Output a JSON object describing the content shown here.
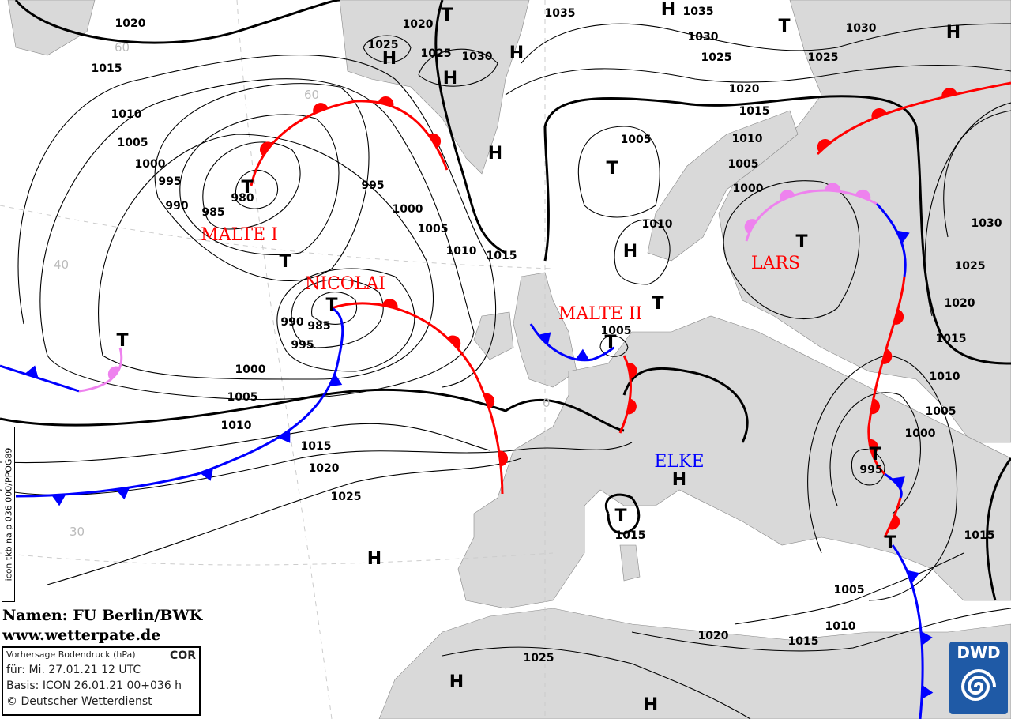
{
  "map": {
    "isobar_labels": [
      "1020",
      "1015",
      "1010",
      "1005",
      "1000",
      "995",
      "990",
      "985",
      "980",
      "995",
      "1000",
      "1005",
      "1010",
      "1015",
      "990",
      "985",
      "995",
      "1000",
      "1005",
      "1010",
      "1015",
      "1020",
      "1025",
      "1020",
      "1025",
      "1025",
      "1030",
      "1035",
      "1035",
      "1030",
      "1025",
      "1020",
      "1015",
      "1010",
      "1005",
      "1000",
      "1005",
      "1010",
      "1005",
      "1030",
      "1025",
      "1030",
      "1025",
      "1020",
      "1015",
      "1010",
      "1005",
      "1000",
      "995",
      "1015",
      "1015",
      "1005",
      "1010",
      "1015",
      "1020",
      "1025"
    ],
    "pressure_centers": [
      "T",
      "H",
      "T",
      "H",
      "H",
      "H",
      "H",
      "H",
      "T",
      "T",
      "T",
      "H",
      "T",
      "T",
      "T",
      "T",
      "T",
      "H",
      "T",
      "T",
      "T",
      "H",
      "H",
      "H"
    ],
    "system_names": [
      {
        "name": "MALTE I",
        "color": "#ff0000"
      },
      {
        "name": "NICOLAI",
        "color": "#ff0000"
      },
      {
        "name": "MALTE II",
        "color": "#ff0000"
      },
      {
        "name": "LARS",
        "color": "#ff0000"
      },
      {
        "name": "ELKE",
        "color": "#0000ff"
      }
    ],
    "grid_labels": [
      "60",
      "60",
      "40",
      "30",
      "0"
    ],
    "colors": {
      "land": "#d9d9d9",
      "sea": "#ffffff",
      "warm_front": "#ff0000",
      "cold_front": "#0000ff",
      "occlusion": "#ee82ee"
    }
  },
  "credits": {
    "line1": "Namen: FU Berlin/BWK",
    "line2": "www.wetterpate.de"
  },
  "infobox": {
    "title": "Vorhersage Bodendruck (hPa)",
    "flag": "COR",
    "valid": "für:  Mi. 27.01.21  12 UTC",
    "basis": "Basis: ICON  26.01.21 00+036 h",
    "copyright": "© Deutscher Wetterdienst"
  },
  "product_code": "icon tkb na p 036 000/PPOG89",
  "logo": {
    "text": "DWD"
  }
}
